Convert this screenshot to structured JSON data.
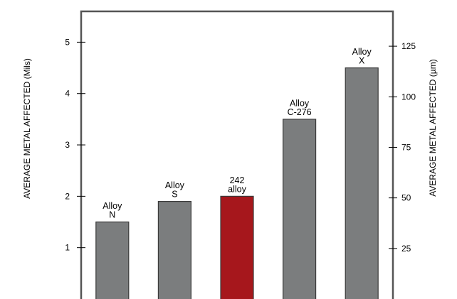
{
  "chart_data": {
    "type": "bar",
    "categories": [
      "Alloy N",
      "Alloy S",
      "242 alloy",
      "Alloy C-276",
      "Alloy X"
    ],
    "category_label_lines": [
      [
        "Alloy",
        "N"
      ],
      [
        "Alloy",
        "S"
      ],
      [
        "242",
        "alloy"
      ],
      [
        "Alloy",
        "C-276"
      ],
      [
        "Alloy",
        "X"
      ]
    ],
    "values": [
      1.5,
      1.9,
      2.0,
      3.5,
      4.5
    ],
    "highlight_index": 2,
    "bar_color": "#7b7d7e",
    "highlight_color": "#a6171c",
    "highlight_label_color": "#c1272d",
    "frame_color": "#555555",
    "ylabel": "AVERAGE METAL AFFECTED (Mils)",
    "ylabel_right": "AVERAGE METAL AFFECTED (µm)",
    "yticks_left": [
      1,
      2,
      3,
      4,
      5
    ],
    "yticks_right": [
      25,
      50,
      75,
      100,
      125
    ],
    "ylim_left": [
      0,
      5.6
    ],
    "ylim_right": [
      0,
      142.24
    ],
    "grid": false
  }
}
